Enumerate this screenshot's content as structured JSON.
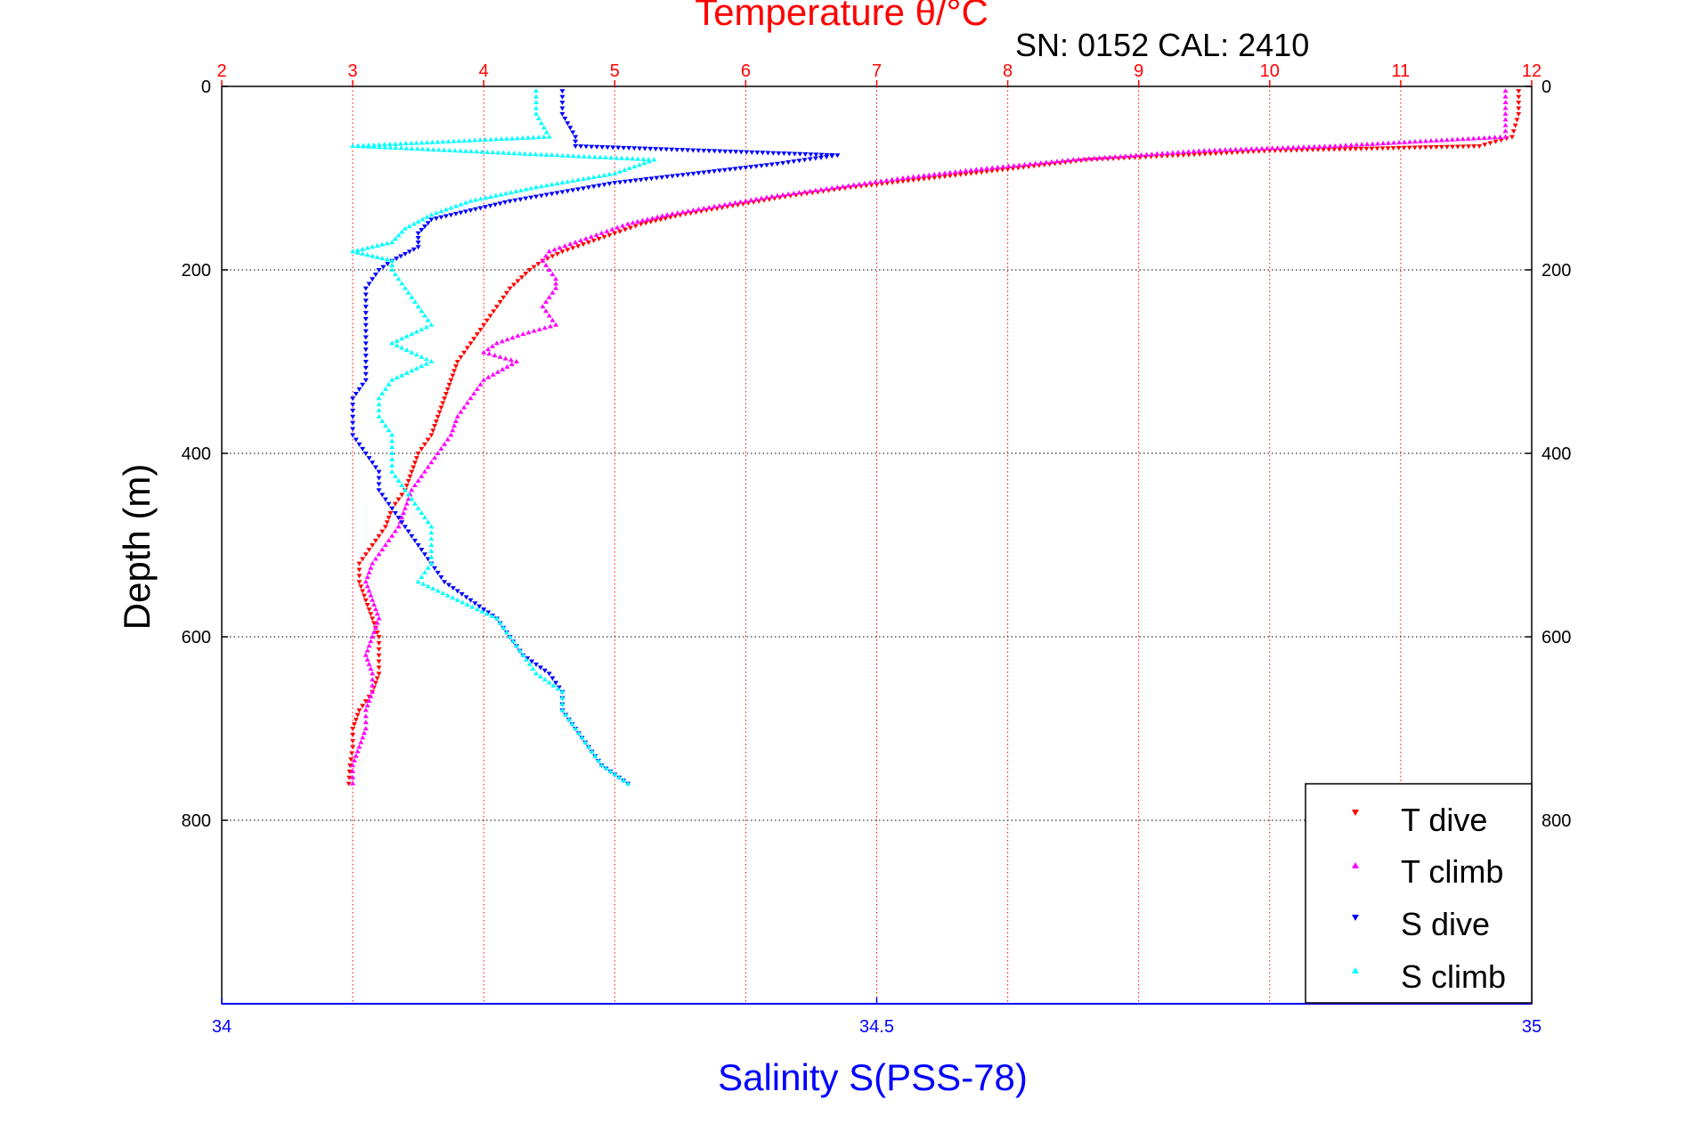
{
  "header": {
    "sn_text": "SN: 0152  CAL: 2410"
  },
  "chart_data": {
    "type": "scatter",
    "title": "Temperature θ/°C",
    "xlabel": "Salinity S(PSS-78)",
    "ylabel": "Depth (m)",
    "grid": true,
    "legend_position": "bottom-right",
    "y_axis": {
      "ylim": [
        0,
        1000
      ],
      "reversed": true,
      "ticks": [
        0,
        200,
        400,
        600,
        800
      ]
    },
    "x_top": {
      "label": "Temperature θ/°C",
      "xlim": [
        2,
        12
      ],
      "ticks": [
        2,
        3,
        4,
        5,
        6,
        7,
        8,
        9,
        10,
        11,
        12
      ],
      "color": "#ff0000"
    },
    "x_bottom": {
      "label": "Salinity S(PSS-78)",
      "xlim": [
        34,
        35
      ],
      "ticks": [
        34,
        34.5,
        35
      ],
      "color": "#0000ff"
    },
    "series": [
      {
        "name": "T dive",
        "axis": "temperature",
        "color": "#ff0000",
        "marker": "down-triangle",
        "depth": [
          5,
          30,
          55,
          65,
          70,
          80,
          90,
          100,
          110,
          120,
          130,
          140,
          150,
          160,
          170,
          180,
          190,
          200,
          220,
          240,
          260,
          280,
          300,
          320,
          340,
          360,
          380,
          400,
          420,
          440,
          460,
          480,
          500,
          520,
          540,
          560,
          580,
          600,
          620,
          640,
          660,
          680,
          700,
          720,
          740,
          760
        ],
        "values": [
          11.9,
          11.9,
          11.85,
          11.6,
          10.0,
          8.6,
          8.0,
          7.4,
          6.8,
          6.3,
          5.9,
          5.5,
          5.2,
          5.0,
          4.8,
          4.6,
          4.45,
          4.35,
          4.2,
          4.1,
          4.0,
          3.9,
          3.8,
          3.75,
          3.7,
          3.65,
          3.6,
          3.5,
          3.45,
          3.4,
          3.3,
          3.25,
          3.15,
          3.05,
          3.05,
          3.1,
          3.15,
          3.2,
          3.2,
          3.2,
          3.15,
          3.05,
          3.0,
          3.0,
          2.98,
          2.97
        ]
      },
      {
        "name": "T climb",
        "axis": "temperature",
        "color": "#ff00ff",
        "marker": "up-triangle",
        "depth": [
          5,
          30,
          55,
          65,
          70,
          80,
          90,
          100,
          110,
          120,
          130,
          140,
          150,
          160,
          170,
          180,
          190,
          200,
          210,
          220,
          240,
          250,
          260,
          270,
          280,
          290,
          300,
          320,
          340,
          360,
          380,
          400,
          420,
          440,
          460,
          480,
          500,
          520,
          540,
          560,
          580,
          600,
          620,
          640,
          660,
          680,
          700,
          720,
          740,
          760
        ],
        "values": [
          11.8,
          11.8,
          11.8,
          10.5,
          9.5,
          8.5,
          7.8,
          7.2,
          6.7,
          6.2,
          5.8,
          5.4,
          5.1,
          4.9,
          4.7,
          4.5,
          4.45,
          4.5,
          4.55,
          4.55,
          4.45,
          4.5,
          4.55,
          4.3,
          4.1,
          4.0,
          4.25,
          4.0,
          3.9,
          3.8,
          3.75,
          3.65,
          3.55,
          3.45,
          3.4,
          3.35,
          3.25,
          3.15,
          3.1,
          3.15,
          3.2,
          3.15,
          3.1,
          3.15,
          3.15,
          3.1,
          3.1,
          3.05,
          3.0,
          3.0
        ]
      },
      {
        "name": "S dive",
        "axis": "salinity",
        "color": "#0000ff",
        "marker": "down-triangle",
        "depth": [
          5,
          30,
          55,
          65,
          75,
          85,
          95,
          105,
          115,
          125,
          135,
          145,
          160,
          175,
          190,
          200,
          220,
          240,
          260,
          280,
          300,
          320,
          340,
          360,
          380,
          400,
          420,
          440,
          460,
          480,
          500,
          520,
          540,
          560,
          580,
          600,
          620,
          640,
          660,
          680,
          700,
          720,
          740,
          760
        ],
        "depth_note": "",
        "values": [
          34.26,
          34.26,
          34.27,
          34.27,
          34.47,
          34.42,
          34.36,
          34.3,
          34.26,
          34.22,
          34.19,
          34.16,
          34.15,
          34.15,
          34.13,
          34.12,
          34.11,
          34.11,
          34.11,
          34.11,
          34.11,
          34.11,
          34.1,
          34.1,
          34.1,
          34.11,
          34.12,
          34.12,
          34.13,
          34.14,
          34.15,
          34.16,
          34.17,
          34.19,
          34.21,
          34.22,
          34.23,
          34.25,
          34.26,
          34.26,
          34.27,
          34.28,
          34.29,
          34.31
        ]
      },
      {
        "name": "S climb",
        "axis": "salinity",
        "color": "#00ffff",
        "marker": "up-triangle",
        "depth": [
          5,
          30,
          55,
          65,
          80,
          95,
          110,
          125,
          140,
          155,
          170,
          180,
          190,
          200,
          220,
          240,
          260,
          280,
          300,
          320,
          340,
          360,
          380,
          400,
          420,
          440,
          460,
          480,
          500,
          520,
          540,
          560,
          580,
          600,
          620,
          640,
          660,
          680,
          700,
          720,
          740,
          760
        ],
        "values": [
          34.24,
          34.24,
          34.25,
          34.1,
          34.33,
          34.3,
          34.24,
          34.19,
          34.16,
          34.14,
          34.13,
          34.1,
          34.13,
          34.13,
          34.14,
          34.15,
          34.16,
          34.13,
          34.16,
          34.13,
          34.12,
          34.12,
          34.13,
          34.13,
          34.13,
          34.14,
          34.15,
          34.16,
          34.16,
          34.16,
          34.15,
          34.18,
          34.21,
          34.22,
          34.23,
          34.24,
          34.26,
          34.26,
          34.27,
          34.28,
          34.29,
          34.31
        ]
      }
    ]
  }
}
